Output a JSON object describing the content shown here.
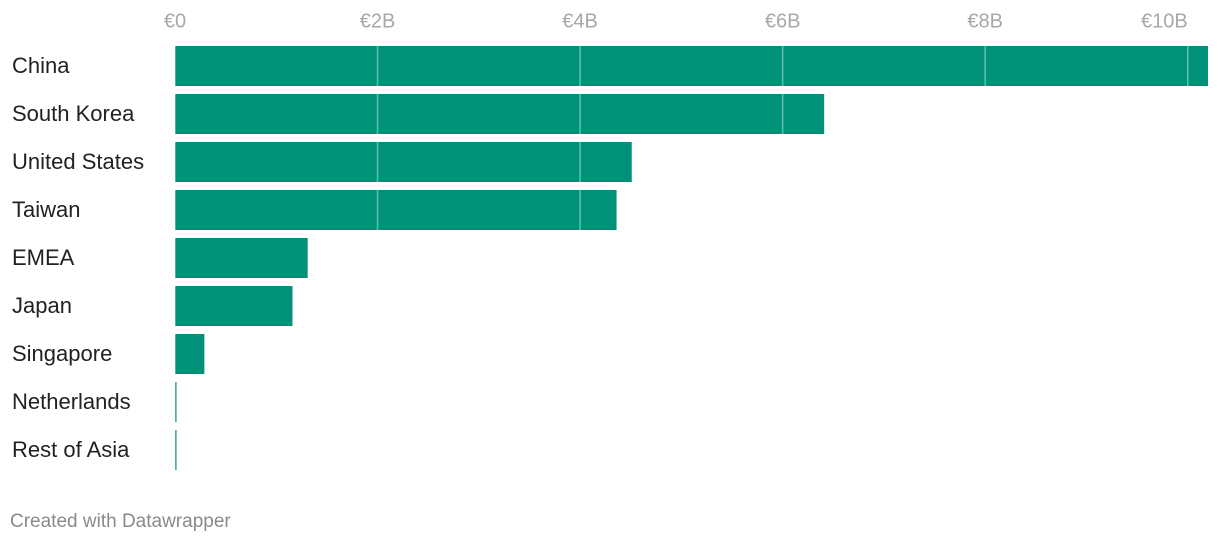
{
  "chart_data": {
    "type": "bar",
    "orientation": "horizontal",
    "categories": [
      "China",
      "South Korea",
      "United States",
      "Taiwan",
      "EMEA",
      "Japan",
      "Singapore",
      "Netherlands",
      "Rest of Asia"
    ],
    "values": [
      10.2,
      6.41,
      4.51,
      4.36,
      1.31,
      1.16,
      0.29,
      0.01,
      0.01
    ],
    "color": "#009279",
    "xlim": [
      0,
      10.2
    ],
    "xticks": [
      {
        "value": 0,
        "label": "€0"
      },
      {
        "value": 2,
        "label": "€2B"
      },
      {
        "value": 4,
        "label": "€4B"
      },
      {
        "value": 6,
        "label": "€6B"
      },
      {
        "value": 8,
        "label": "€8B"
      },
      {
        "value": 10,
        "label": "€10B"
      }
    ],
    "grid": true,
    "credit": "Created with Datawrapper"
  }
}
